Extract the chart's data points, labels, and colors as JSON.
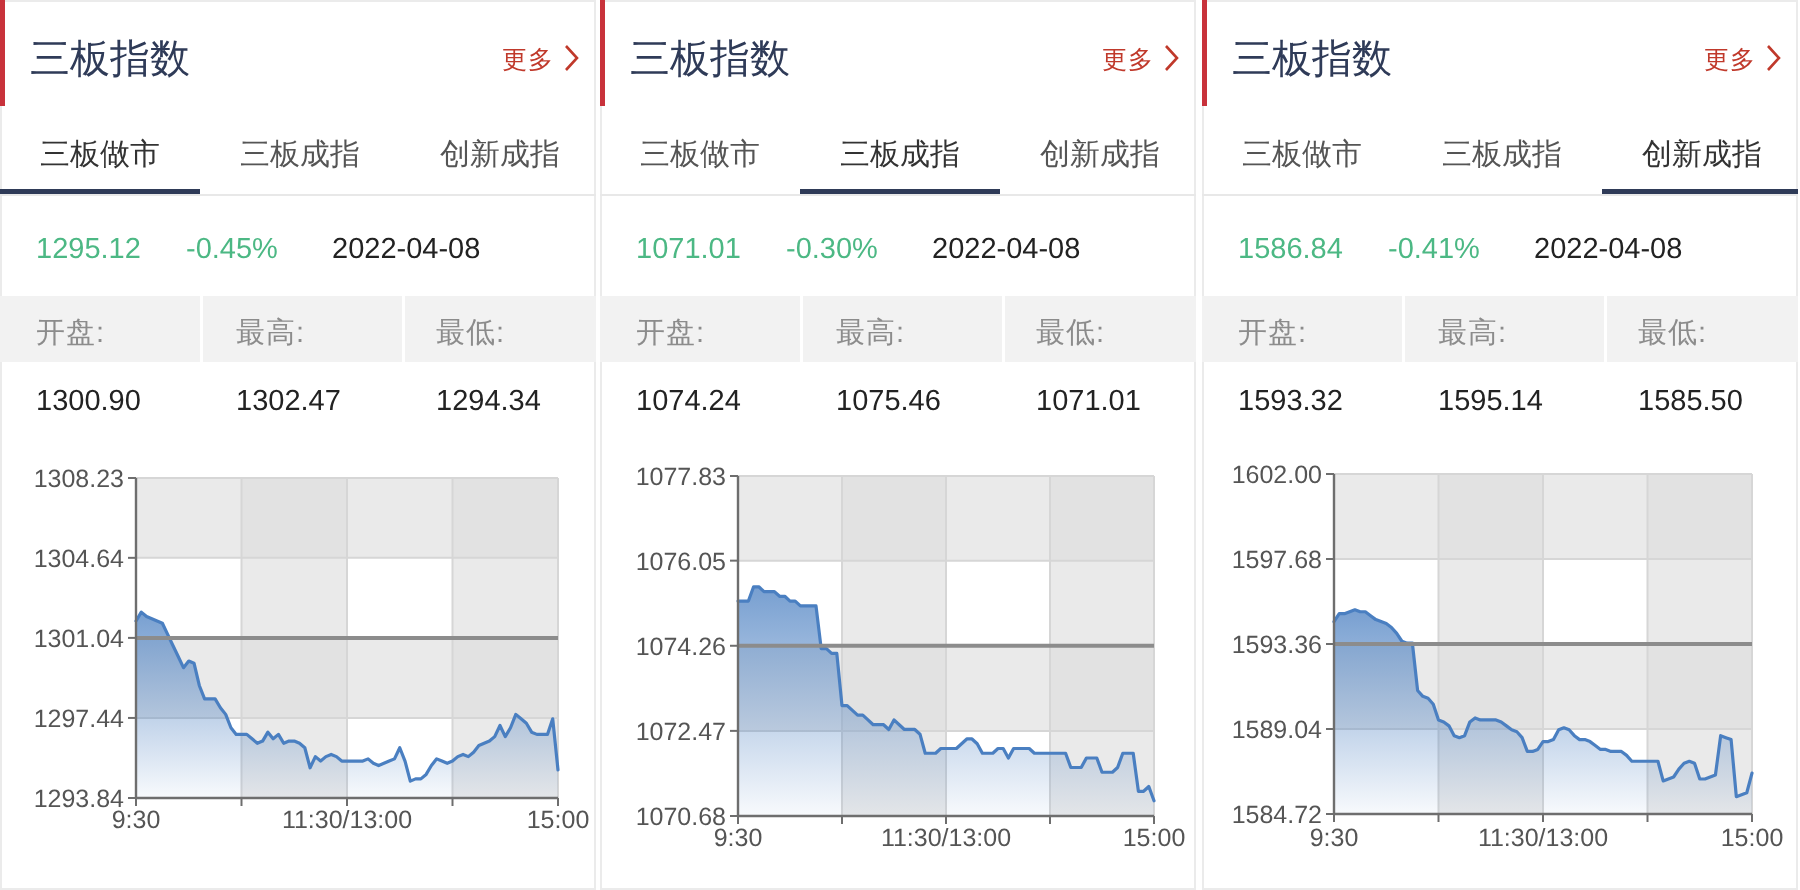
{
  "chart_data": [
    {
      "type": "area",
      "title": "三板指数",
      "annotations": [
        "更多",
        "三板做市",
        "三板成指",
        "创新成指",
        "1295.12",
        "-0.45%",
        "2022-04-08",
        "开盘:",
        "最高:",
        "最低:",
        "1300.90",
        "1302.47",
        "1294.34"
      ],
      "categories": [
        "9:30",
        null,
        null,
        null,
        null,
        null,
        null,
        null,
        null,
        null,
        null,
        null,
        null,
        null,
        null,
        null,
        null,
        null,
        null,
        null,
        null,
        null,
        null,
        null,
        null,
        null,
        null,
        null,
        null,
        null,
        null,
        null,
        null,
        null,
        null,
        null,
        null,
        null,
        null,
        null,
        "11:30/13:00",
        null,
        null,
        null,
        null,
        null,
        null,
        null,
        null,
        null,
        null,
        null,
        null,
        null,
        null,
        null,
        null,
        null,
        null,
        null,
        null,
        null,
        null,
        null,
        null,
        null,
        null,
        null,
        null,
        null,
        null,
        null,
        null,
        null,
        null,
        null,
        null,
        null,
        null,
        null,
        "15:00"
      ],
      "values": [
        1301.8,
        1302.2,
        1302.0,
        1301.9,
        1301.8,
        1301.7,
        1301.2,
        1300.7,
        1300.2,
        1299.7,
        1300.0,
        1299.9,
        1298.9,
        1298.3,
        1298.3,
        1298.3,
        1297.9,
        1297.6,
        1297.0,
        1296.7,
        1296.7,
        1296.7,
        1296.5,
        1296.3,
        1296.4,
        1296.8,
        1296.5,
        1296.7,
        1296.3,
        1296.4,
        1296.4,
        1296.3,
        1296.1,
        1295.2,
        1295.7,
        1295.5,
        1295.7,
        1295.8,
        1295.7,
        1295.5,
        1295.5,
        1295.5,
        1295.5,
        1295.5,
        1295.6,
        1295.4,
        1295.3,
        1295.4,
        1295.5,
        1295.6,
        1296.1,
        1295.5,
        1294.6,
        1294.7,
        1294.7,
        1294.9,
        1295.3,
        1295.6,
        1295.5,
        1295.4,
        1295.5,
        1295.7,
        1295.8,
        1295.7,
        1295.9,
        1296.2,
        1296.3,
        1296.4,
        1296.6,
        1297.1,
        1296.6,
        1297.0,
        1297.6,
        1297.4,
        1297.2,
        1296.8,
        1296.7,
        1296.7,
        1296.7,
        1297.4,
        1295.1
      ],
      "color": "#4a7fc1",
      "ylim": [
        1293.84,
        1308.23
      ],
      "yticks": [
        1293.84,
        1297.44,
        1301.04,
        1304.64,
        1308.23
      ],
      "grid": true,
      "ref_lines": [
        {
          "axis": "y",
          "value": 1301.04,
          "color": "#8c8c8c"
        }
      ],
      "bands": [
        {
          "axis": "y",
          "from": 1304.64,
          "to": 1308.23,
          "color": "#dcdcdc"
        },
        {
          "axis": "y",
          "from": 1297.44,
          "to": 1301.04,
          "color": "#dcdcdc"
        }
      ]
    },
    {
      "type": "area",
      "title": "三板指数",
      "annotations": [
        "更多",
        "三板做市",
        "三板成指",
        "创新成指",
        "1071.01",
        "-0.30%",
        "2022-04-08",
        "开盘:",
        "最高:",
        "最低:",
        "1074.24",
        "1075.46",
        "1071.01"
      ],
      "categories": [
        "9:30",
        null,
        null,
        null,
        null,
        null,
        null,
        null,
        null,
        null,
        null,
        null,
        null,
        null,
        null,
        null,
        null,
        null,
        null,
        null,
        null,
        null,
        null,
        null,
        null,
        null,
        null,
        null,
        null,
        null,
        null,
        null,
        null,
        null,
        null,
        null,
        null,
        null,
        null,
        null,
        "11:30/13:00",
        null,
        null,
        null,
        null,
        null,
        null,
        null,
        null,
        null,
        null,
        null,
        null,
        null,
        null,
        null,
        null,
        null,
        null,
        null,
        null,
        null,
        null,
        null,
        null,
        null,
        null,
        null,
        null,
        null,
        null,
        null,
        null,
        null,
        null,
        null,
        null,
        null,
        null,
        null,
        "15:00"
      ],
      "values": [
        1075.2,
        1075.2,
        1075.2,
        1075.5,
        1075.5,
        1075.4,
        1075.4,
        1075.4,
        1075.3,
        1075.3,
        1075.2,
        1075.2,
        1075.1,
        1075.1,
        1075.1,
        1075.1,
        1074.2,
        1074.2,
        1074.1,
        1074.1,
        1073.0,
        1073.0,
        1072.9,
        1072.8,
        1072.8,
        1072.7,
        1072.6,
        1072.6,
        1072.6,
        1072.5,
        1072.7,
        1072.6,
        1072.5,
        1072.5,
        1072.5,
        1072.4,
        1072.0,
        1072.0,
        1072.0,
        1072.1,
        1072.1,
        1072.1,
        1072.1,
        1072.2,
        1072.3,
        1072.3,
        1072.2,
        1072.0,
        1072.0,
        1072.0,
        1072.1,
        1072.1,
        1071.9,
        1072.1,
        1072.1,
        1072.1,
        1072.1,
        1072.0,
        1072.0,
        1072.0,
        1072.0,
        1072.0,
        1072.0,
        1072.0,
        1071.7,
        1071.7,
        1071.7,
        1071.9,
        1071.9,
        1071.9,
        1071.6,
        1071.6,
        1071.6,
        1071.7,
        1072.0,
        1072.0,
        1072.0,
        1071.2,
        1071.2,
        1071.3,
        1071.0
      ],
      "color": "#4a7fc1",
      "ylim": [
        1070.68,
        1077.83
      ],
      "yticks": [
        1070.68,
        1072.47,
        1074.26,
        1076.05,
        1077.83
      ],
      "grid": true,
      "ref_lines": [
        {
          "axis": "y",
          "value": 1074.26,
          "color": "#8c8c8c"
        }
      ],
      "bands": [
        {
          "axis": "y",
          "from": 1076.05,
          "to": 1077.83,
          "color": "#dcdcdc"
        },
        {
          "axis": "y",
          "from": 1072.47,
          "to": 1074.26,
          "color": "#dcdcdc"
        }
      ]
    },
    {
      "type": "area",
      "title": "三板指数",
      "annotations": [
        "更多",
        "三板做市",
        "三板成指",
        "创新成指",
        "1586.84",
        "-0.41%",
        "2022-04-08",
        "开盘:",
        "最高:",
        "最低:",
        "1593.32",
        "1595.14",
        "1585.50"
      ],
      "categories": [
        "9:30",
        null,
        null,
        null,
        null,
        null,
        null,
        null,
        null,
        null,
        null,
        null,
        null,
        null,
        null,
        null,
        null,
        null,
        null,
        null,
        null,
        null,
        null,
        null,
        null,
        null,
        null,
        null,
        null,
        null,
        null,
        null,
        null,
        null,
        null,
        null,
        null,
        null,
        null,
        null,
        "11:30/13:00",
        null,
        null,
        null,
        null,
        null,
        null,
        null,
        null,
        null,
        null,
        null,
        null,
        null,
        null,
        null,
        null,
        null,
        null,
        null,
        null,
        null,
        null,
        null,
        null,
        null,
        null,
        null,
        null,
        null,
        null,
        null,
        null,
        null,
        null,
        null,
        null,
        null,
        null,
        null,
        "15:00"
      ],
      "values": [
        1594.5,
        1594.9,
        1594.9,
        1595.0,
        1595.1,
        1595.0,
        1595.0,
        1594.8,
        1594.6,
        1594.5,
        1594.4,
        1594.2,
        1593.9,
        1593.5,
        1593.4,
        1593.4,
        1591.0,
        1590.7,
        1590.6,
        1590.3,
        1589.5,
        1589.4,
        1589.2,
        1588.7,
        1588.6,
        1588.7,
        1589.4,
        1589.6,
        1589.5,
        1589.5,
        1589.5,
        1589.5,
        1589.4,
        1589.2,
        1589.0,
        1588.9,
        1588.6,
        1587.9,
        1587.9,
        1588.0,
        1588.4,
        1588.4,
        1588.5,
        1589.0,
        1589.1,
        1589.0,
        1588.7,
        1588.5,
        1588.5,
        1588.4,
        1588.2,
        1588.0,
        1588.0,
        1587.9,
        1587.9,
        1587.9,
        1587.7,
        1587.4,
        1587.4,
        1587.4,
        1587.4,
        1587.4,
        1587.4,
        1586.4,
        1586.5,
        1586.6,
        1587.0,
        1587.3,
        1587.4,
        1587.3,
        1586.5,
        1586.5,
        1586.6,
        1586.7,
        1588.7,
        1588.6,
        1588.5,
        1585.6,
        1585.7,
        1585.8,
        1586.8
      ],
      "color": "#4a7fc1",
      "ylim": [
        1584.72,
        1602.0
      ],
      "yticks": [
        1584.72,
        1589.04,
        1593.36,
        1597.68,
        {
          "value": 1602.0,
          "label": "1602.00"
        }
      ],
      "grid": true,
      "ref_lines": [
        {
          "axis": "y",
          "value": 1593.36,
          "color": "#8c8c8c"
        }
      ],
      "bands": [
        {
          "axis": "y",
          "from": 1597.68,
          "to": 1602.0,
          "color": "#dcdcdc"
        },
        {
          "axis": "y",
          "from": 1589.04,
          "to": 1593.36,
          "color": "#dcdcdc"
        }
      ]
    }
  ]
}
